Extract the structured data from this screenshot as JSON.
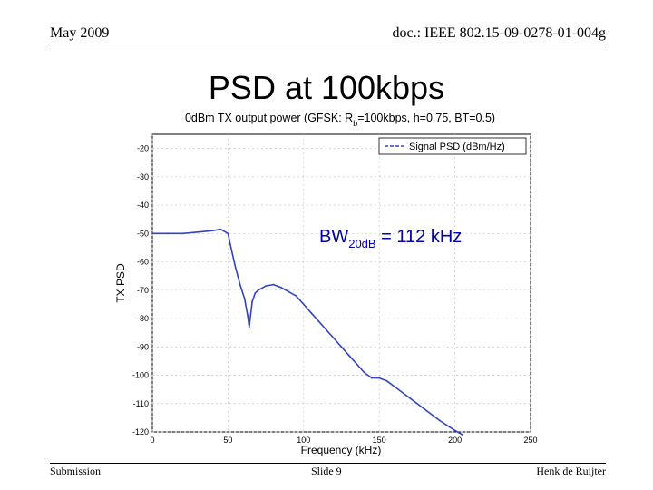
{
  "header": {
    "date": "May 2009",
    "doc": "doc.: IEEE 802.15-09-0278-01-004g"
  },
  "slide": {
    "title": "PSD at 100kbps"
  },
  "footer": {
    "left": "Submission",
    "middle": "Slide 9",
    "right": "Henk de Ruijter"
  },
  "annotation": {
    "bw_prefix": "BW",
    "bw_sub": "20dB",
    "bw_value": " = 112 kHz"
  },
  "chart_data": {
    "type": "line",
    "title_pre": "0dBm TX output power (GFSK: R",
    "title_sub": "b",
    "title_post": "=100kbps, h=0.75, BT=0.5)",
    "xlabel": "Frequency (kHz)",
    "ylabel": "TX PSD",
    "xlim": [
      0,
      250
    ],
    "ylim": [
      -120,
      -15
    ],
    "xticks": [
      0,
      50,
      100,
      150,
      200,
      250
    ],
    "yticks": [
      -20,
      -30,
      -40,
      -50,
      -60,
      -70,
      -80,
      -90,
      -100,
      -110,
      -120
    ],
    "grid": true,
    "legend_position": "top-right",
    "series": [
      {
        "name": "Signal PSD (dBm/Hz)",
        "color": "#3344bb",
        "x": [
          0,
          10,
          20,
          30,
          40,
          45,
          50,
          52,
          55,
          58,
          61,
          63,
          64,
          66,
          68,
          70,
          75,
          80,
          85,
          90,
          95,
          100,
          105,
          110,
          115,
          120,
          125,
          130,
          135,
          140,
          145,
          150,
          155,
          160,
          170,
          180,
          190,
          200,
          205
        ],
        "y": [
          -50,
          -50,
          -50,
          -49.5,
          -49,
          -48.5,
          -50,
          -55,
          -62,
          -68,
          -73,
          -79,
          -83,
          -74,
          -71,
          -70,
          -68.5,
          -68,
          -69,
          -70.5,
          -72,
          -75,
          -78,
          -81,
          -84,
          -87,
          -90,
          -93,
          -96,
          -99,
          -101,
          -101,
          -102,
          -104,
          -108,
          -112,
          -116,
          -119.5,
          -121
        ]
      }
    ]
  }
}
